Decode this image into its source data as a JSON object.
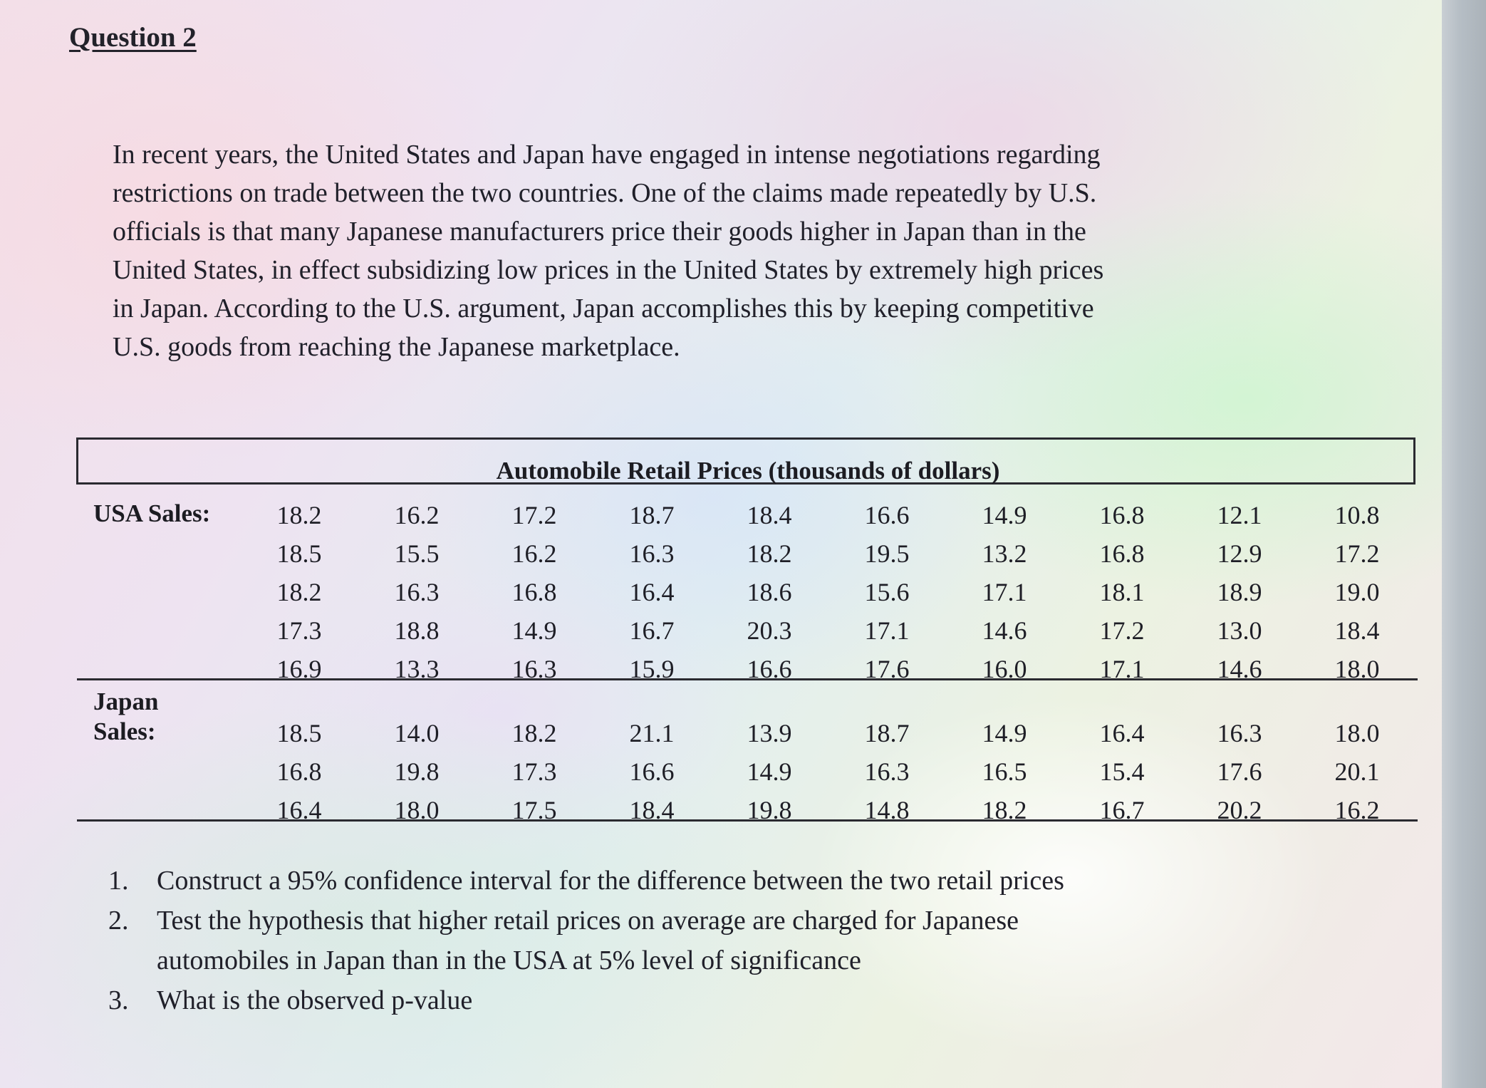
{
  "question_heading": "Question 2",
  "intro_lines": [
    "In recent years, the United States and Japan have engaged in intense negotiations regarding",
    "restrictions on trade between the two countries.  One of the claims made repeatedly by U.S.",
    "officials is that many Japanese manufacturers price their goods higher in Japan than in the",
    "United States, in effect subsidizing low prices in the United States by extremely high prices",
    "in Japan.  According to the U.S. argument, Japan accomplishes this by keeping competitive",
    "U.S. goods from reaching the Japanese marketplace."
  ],
  "table": {
    "title": "Automobile Retail Prices (thousands of dollars)",
    "usa": {
      "label": "USA Sales:",
      "rows": [
        [
          "18.2",
          "16.2",
          "17.2",
          "18.7",
          "18.4",
          "16.6",
          "14.9",
          "16.8",
          "12.1",
          "10.8"
        ],
        [
          "18.5",
          "15.5",
          "16.2",
          "16.3",
          "18.2",
          "19.5",
          "13.2",
          "16.8",
          "12.9",
          "17.2"
        ],
        [
          "18.2",
          "16.3",
          "16.8",
          "16.4",
          "18.6",
          "15.6",
          "17.1",
          "18.1",
          "18.9",
          "19.0"
        ],
        [
          "17.3",
          "18.8",
          "14.9",
          "16.7",
          "20.3",
          "17.1",
          "14.6",
          "17.2",
          "13.0",
          "18.4"
        ],
        [
          "16.9",
          "13.3",
          "16.3",
          "15.9",
          "16.6",
          "17.6",
          "16.0",
          "17.1",
          "14.6",
          "18.0"
        ]
      ]
    },
    "japan": {
      "label_line1": "Japan",
      "label_line2": "Sales:",
      "rows": [
        [
          "18.5",
          "14.0",
          "18.2",
          "21.1",
          "13.9",
          "18.7",
          "14.9",
          "16.4",
          "16.3",
          "18.0"
        ],
        [
          "16.8",
          "19.8",
          "17.3",
          "16.6",
          "14.9",
          "16.3",
          "16.5",
          "15.4",
          "17.6",
          "20.1"
        ],
        [
          "16.4",
          "18.0",
          "17.5",
          "18.4",
          "19.8",
          "14.8",
          "18.2",
          "16.7",
          "20.2",
          "16.2"
        ]
      ]
    }
  },
  "questions": [
    {
      "number": "1.",
      "lines": [
        "Construct a 95% confidence interval for the difference between the two retail prices"
      ]
    },
    {
      "number": "2.",
      "lines": [
        "Test the hypothesis that higher retail prices on average are charged for Japanese",
        "automobiles in Japan than in the USA at 5% level of significance"
      ]
    },
    {
      "number": "3.",
      "lines": [
        "What is the observed p-value"
      ]
    }
  ]
}
